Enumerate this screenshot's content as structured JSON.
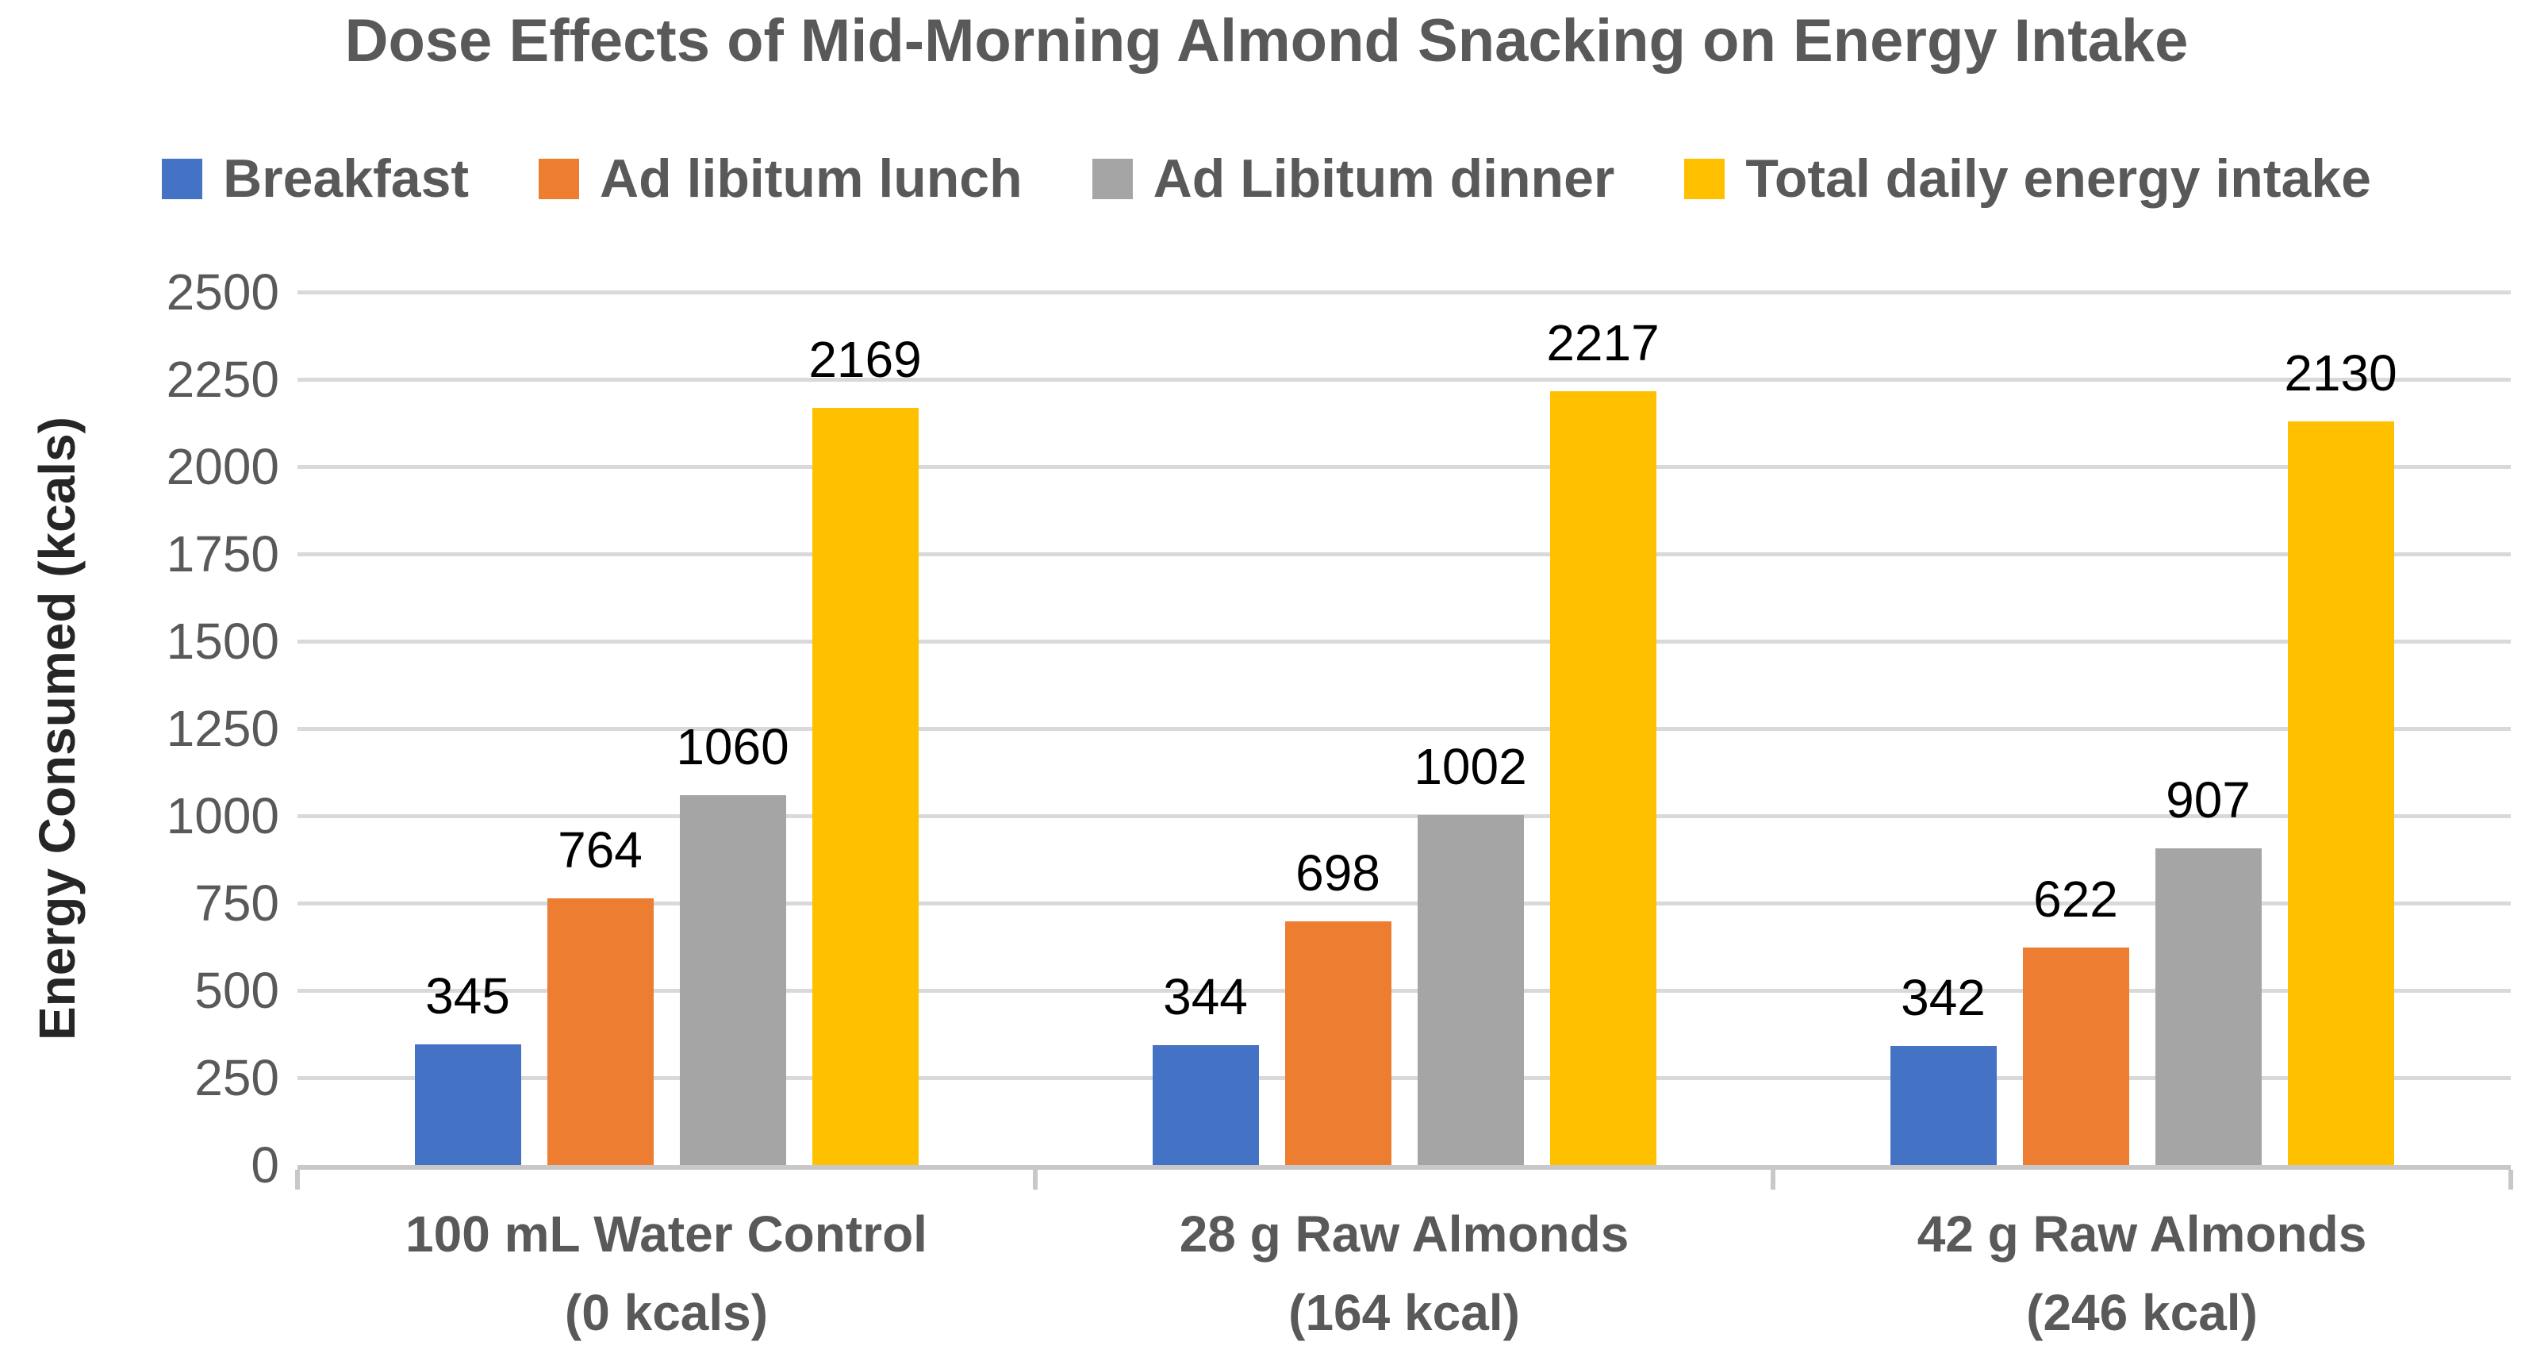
{
  "chart_data": {
    "type": "bar",
    "title": "Dose Effects of Mid-Morning Almond Snacking on Energy Intake",
    "xlabel": "",
    "ylabel": "Energy Consumed (kcals)",
    "ylim": [
      0,
      2500
    ],
    "ytick_interval": 250,
    "ytick_labels": [
      "2500",
      "2250",
      "2000",
      "1750",
      "1500",
      "1250",
      "1000",
      "750",
      "500",
      "250",
      "0"
    ],
    "grid": true,
    "legend_position": "top",
    "data_labels": true,
    "categories": [
      {
        "line1": "100 mL Water Control",
        "line2": "(0 kcals)"
      },
      {
        "line1": "28 g Raw Almonds",
        "line2": "(164 kcal)"
      },
      {
        "line1": "42 g Raw Almonds",
        "line2": "(246 kcal)"
      }
    ],
    "series": [
      {
        "name": "Breakfast",
        "color": "#4472C4",
        "values": [
          345,
          344,
          342
        ]
      },
      {
        "name": "Ad libitum lunch",
        "color": "#ED7D31",
        "values": [
          764,
          698,
          622
        ]
      },
      {
        "name": "Ad Libitum dinner",
        "color": "#A5A5A5",
        "values": [
          1060,
          1002,
          907
        ]
      },
      {
        "name": "Total daily energy intake",
        "color": "#FFC000",
        "values": [
          2169,
          2217,
          2130
        ]
      }
    ]
  },
  "colors": {
    "title_text": "#595959",
    "axis_text": "#595959",
    "y_axis_title_text": "#262626",
    "data_label_text": "#000000",
    "gridline": "#D9D9D9",
    "axis_line": "#C9C7C7",
    "background": "#FFFFFF"
  }
}
